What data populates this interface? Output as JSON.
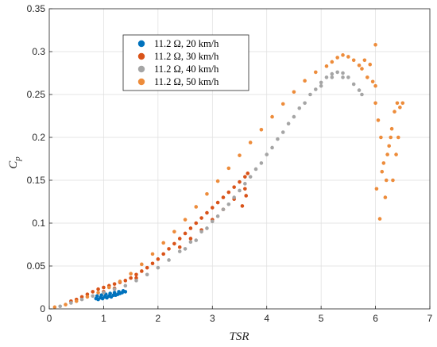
{
  "chart_data": {
    "type": "scatter",
    "title": "",
    "xlabel": "TSR",
    "ylabel": "C",
    "ylabel_subscript": "p",
    "xlim": [
      0,
      7
    ],
    "ylim": [
      0,
      0.35
    ],
    "xticks": [
      "0",
      "1",
      "2",
      "3",
      "4",
      "5",
      "6",
      "7"
    ],
    "yticks": [
      "0",
      "0.05",
      "0.1",
      "0.15",
      "0.2",
      "0.25",
      "0.3",
      "0.35"
    ],
    "grid": true,
    "legend_position": "upper-left-inside",
    "series": [
      {
        "name": "11.2 Ω, 20 km/h",
        "color": "#0072BD",
        "points": [
          [
            0.86,
            0.012
          ],
          [
            0.9,
            0.011
          ],
          [
            0.94,
            0.013
          ],
          [
            0.98,
            0.012
          ],
          [
            1.02,
            0.014
          ],
          [
            1.06,
            0.013
          ],
          [
            1.1,
            0.015
          ],
          [
            1.14,
            0.014
          ],
          [
            1.18,
            0.016
          ],
          [
            1.22,
            0.016
          ],
          [
            1.26,
            0.017
          ],
          [
            1.3,
            0.018
          ],
          [
            1.34,
            0.019
          ],
          [
            1.4,
            0.02
          ],
          [
            0.88,
            0.015
          ],
          [
            0.96,
            0.016
          ],
          [
            1.04,
            0.017
          ],
          [
            1.12,
            0.018
          ],
          [
            1.2,
            0.019
          ],
          [
            1.28,
            0.02
          ],
          [
            1.36,
            0.021
          ]
        ]
      },
      {
        "name": "11.2 Ω, 30 km/h",
        "color": "#D95319",
        "points": [
          [
            0.4,
            0.009
          ],
          [
            0.5,
            0.011
          ],
          [
            0.6,
            0.014
          ],
          [
            0.7,
            0.017
          ],
          [
            0.8,
            0.02
          ],
          [
            0.9,
            0.023
          ],
          [
            1.0,
            0.025
          ],
          [
            1.1,
            0.027
          ],
          [
            1.2,
            0.029
          ],
          [
            1.3,
            0.031
          ],
          [
            1.4,
            0.033
          ],
          [
            1.5,
            0.036
          ],
          [
            1.6,
            0.04
          ],
          [
            1.7,
            0.044
          ],
          [
            1.8,
            0.048
          ],
          [
            1.9,
            0.053
          ],
          [
            2.0,
            0.058
          ],
          [
            2.1,
            0.064
          ],
          [
            2.2,
            0.07
          ],
          [
            2.3,
            0.076
          ],
          [
            2.4,
            0.082
          ],
          [
            2.5,
            0.088
          ],
          [
            2.6,
            0.094
          ],
          [
            2.7,
            0.1
          ],
          [
            2.8,
            0.106
          ],
          [
            2.9,
            0.112
          ],
          [
            3.0,
            0.118
          ],
          [
            3.1,
            0.124
          ],
          [
            3.2,
            0.13
          ],
          [
            3.3,
            0.136
          ],
          [
            3.4,
            0.142
          ],
          [
            3.5,
            0.148
          ],
          [
            3.6,
            0.154
          ],
          [
            3.65,
            0.158
          ],
          [
            2.4,
            0.072
          ],
          [
            2.6,
            0.082
          ],
          [
            2.8,
            0.092
          ],
          [
            3.0,
            0.104
          ],
          [
            3.2,
            0.116
          ],
          [
            3.4,
            0.128
          ],
          [
            3.6,
            0.14
          ],
          [
            3.62,
            0.132
          ],
          [
            3.55,
            0.12
          ],
          [
            1.0,
            0.02
          ],
          [
            1.2,
            0.024
          ],
          [
            1.6,
            0.036
          ]
        ]
      },
      {
        "name": "11.2 Ω, 40 km/h",
        "color": "#A5A5A5",
        "points": [
          [
            0.2,
            0.003
          ],
          [
            0.4,
            0.007
          ],
          [
            0.6,
            0.011
          ],
          [
            0.8,
            0.015
          ],
          [
            1.0,
            0.019
          ],
          [
            1.2,
            0.023
          ],
          [
            1.4,
            0.027
          ],
          [
            1.6,
            0.033
          ],
          [
            1.8,
            0.04
          ],
          [
            2.0,
            0.048
          ],
          [
            2.2,
            0.057
          ],
          [
            2.4,
            0.067
          ],
          [
            2.6,
            0.078
          ],
          [
            2.8,
            0.09
          ],
          [
            3.0,
            0.102
          ],
          [
            3.2,
            0.116
          ],
          [
            3.4,
            0.13
          ],
          [
            3.6,
            0.146
          ],
          [
            3.8,
            0.163
          ],
          [
            4.0,
            0.18
          ],
          [
            4.2,
            0.198
          ],
          [
            4.4,
            0.216
          ],
          [
            4.6,
            0.234
          ],
          [
            4.8,
            0.25
          ],
          [
            5.0,
            0.264
          ],
          [
            5.1,
            0.27
          ],
          [
            5.2,
            0.274
          ],
          [
            5.3,
            0.276
          ],
          [
            5.4,
            0.275
          ],
          [
            5.5,
            0.27
          ],
          [
            5.6,
            0.262
          ],
          [
            5.7,
            0.255
          ],
          [
            5.75,
            0.25
          ],
          [
            2.5,
            0.07
          ],
          [
            2.7,
            0.08
          ],
          [
            2.9,
            0.094
          ],
          [
            3.1,
            0.108
          ],
          [
            3.3,
            0.122
          ],
          [
            3.5,
            0.138
          ],
          [
            3.7,
            0.154
          ],
          [
            3.9,
            0.17
          ],
          [
            4.1,
            0.188
          ],
          [
            4.3,
            0.206
          ],
          [
            4.5,
            0.224
          ],
          [
            4.7,
            0.24
          ],
          [
            4.9,
            0.256
          ],
          [
            5.0,
            0.26
          ],
          [
            5.2,
            0.27
          ],
          [
            5.4,
            0.27
          ]
        ]
      },
      {
        "name": "11.2 Ω, 50 km/h",
        "color": "#ED8C3B",
        "points": [
          [
            0.1,
            0.002
          ],
          [
            0.3,
            0.005
          ],
          [
            0.5,
            0.009
          ],
          [
            0.7,
            0.014
          ],
          [
            0.9,
            0.019
          ],
          [
            1.1,
            0.025
          ],
          [
            1.3,
            0.032
          ],
          [
            1.5,
            0.041
          ],
          [
            1.7,
            0.052
          ],
          [
            1.9,
            0.064
          ],
          [
            2.1,
            0.077
          ],
          [
            2.3,
            0.09
          ],
          [
            2.5,
            0.104
          ],
          [
            2.7,
            0.119
          ],
          [
            2.9,
            0.134
          ],
          [
            3.1,
            0.149
          ],
          [
            3.3,
            0.164
          ],
          [
            3.5,
            0.179
          ],
          [
            3.7,
            0.194
          ],
          [
            3.9,
            0.209
          ],
          [
            4.1,
            0.224
          ],
          [
            4.3,
            0.239
          ],
          [
            4.5,
            0.253
          ],
          [
            4.7,
            0.266
          ],
          [
            4.9,
            0.276
          ],
          [
            5.1,
            0.283
          ],
          [
            5.2,
            0.288
          ],
          [
            5.3,
            0.293
          ],
          [
            5.4,
            0.296
          ],
          [
            5.5,
            0.294
          ],
          [
            5.6,
            0.29
          ],
          [
            5.7,
            0.284
          ],
          [
            5.8,
            0.29
          ],
          [
            5.9,
            0.285
          ],
          [
            6.0,
            0.308
          ],
          [
            6.0,
            0.26
          ],
          [
            6.05,
            0.22
          ],
          [
            6.1,
            0.2
          ],
          [
            6.15,
            0.17
          ],
          [
            6.2,
            0.15
          ],
          [
            6.25,
            0.19
          ],
          [
            6.3,
            0.21
          ],
          [
            6.35,
            0.23
          ],
          [
            6.4,
            0.24
          ],
          [
            6.45,
            0.235
          ],
          [
            6.5,
            0.24
          ],
          [
            6.02,
            0.14
          ],
          [
            6.08,
            0.105
          ],
          [
            6.12,
            0.16
          ],
          [
            6.18,
            0.13
          ],
          [
            6.22,
            0.18
          ],
          [
            6.28,
            0.2
          ],
          [
            6.32,
            0.15
          ],
          [
            6.38,
            0.18
          ],
          [
            6.42,
            0.2
          ],
          [
            6.0,
            0.24
          ],
          [
            5.95,
            0.265
          ],
          [
            5.85,
            0.27
          ],
          [
            5.75,
            0.28
          ]
        ]
      }
    ]
  }
}
